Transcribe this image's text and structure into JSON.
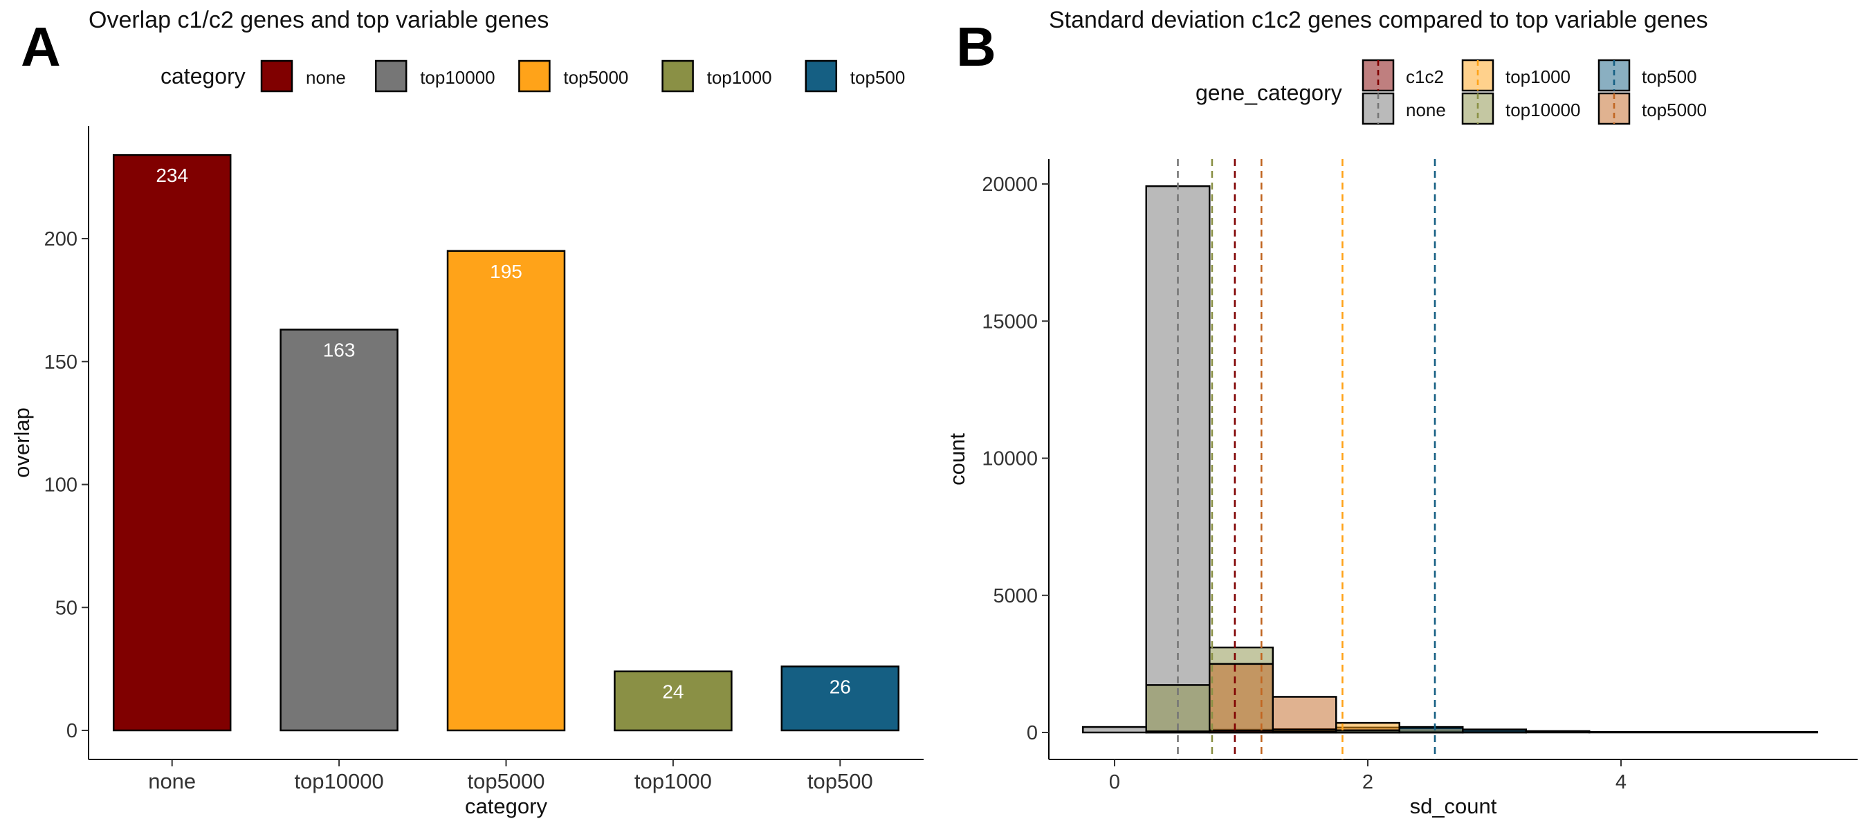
{
  "panels": {
    "a_letter": "A",
    "b_letter": "B"
  },
  "chart_data": [
    {
      "type": "bar",
      "title": "Overlap c1/c2 genes and top variable genes",
      "xlabel": "category",
      "ylabel": "overlap",
      "categories": [
        "none",
        "top10000",
        "top5000",
        "top1000",
        "top500"
      ],
      "values": [
        234,
        163,
        195,
        24,
        26
      ],
      "data_labels": [
        "234",
        "163",
        "195",
        "24",
        "26"
      ],
      "colors": [
        "#800000",
        "#767676",
        "#FFA319",
        "#8A9045",
        "#155F83"
      ],
      "ylim": [
        0,
        240
      ],
      "yticks": [
        0,
        50,
        100,
        150,
        200
      ],
      "legend": {
        "title": "category",
        "position": "top",
        "entries": [
          "none",
          "top10000",
          "top5000",
          "top1000",
          "top500"
        ]
      },
      "grid": false
    },
    {
      "type": "histogram",
      "title": "Standard deviation c1c2 genes compared to top variable genes",
      "xlabel": "sd_count",
      "ylabel": "count",
      "xlim": [
        -0.25,
        5.55
      ],
      "ylim": [
        0,
        20800
      ],
      "xticks": [
        0,
        2,
        4
      ],
      "yticks": [
        0,
        5000,
        10000,
        15000,
        20000
      ],
      "legend": {
        "title": "gene_category",
        "position": "top",
        "entries": [
          {
            "name": "c1c2",
            "color": "#800000"
          },
          {
            "name": "top1000",
            "color": "#FFA319"
          },
          {
            "name": "top500",
            "color": "#155F83"
          },
          {
            "name": "none",
            "color": "#767676"
          },
          {
            "name": "top10000",
            "color": "#8A9045"
          },
          {
            "name": "top5000",
            "color": "#C16622"
          }
        ]
      },
      "series": [
        {
          "name": "none",
          "color": "#767676",
          "bins": [
            [
              -0.25,
              0.25,
              200
            ],
            [
              0.25,
              0.75,
              19920
            ],
            [
              0.75,
              1.25,
              100
            ],
            [
              1.25,
              1.75,
              20
            ]
          ]
        },
        {
          "name": "top10000",
          "color": "#8A9045",
          "bins": [
            [
              0.25,
              0.75,
              1730
            ],
            [
              0.75,
              1.25,
              3100
            ],
            [
              1.25,
              1.75,
              120
            ],
            [
              1.75,
              2.25,
              30
            ]
          ]
        },
        {
          "name": "top5000",
          "color": "#C16622",
          "bins": [
            [
              0.75,
              1.25,
              2500
            ],
            [
              1.25,
              1.75,
              1300
            ],
            [
              1.75,
              2.25,
              180
            ],
            [
              2.25,
              2.75,
              40
            ]
          ]
        },
        {
          "name": "top1000",
          "color": "#FFA319",
          "bins": [
            [
              1.25,
              1.75,
              100
            ],
            [
              1.75,
              2.25,
              350
            ],
            [
              2.25,
              2.75,
              150
            ],
            [
              2.75,
              3.25,
              50
            ]
          ]
        },
        {
          "name": "top500",
          "color": "#155F83",
          "bins": [
            [
              1.75,
              2.25,
              80
            ],
            [
              2.25,
              2.75,
              200
            ],
            [
              2.75,
              3.25,
              110
            ],
            [
              3.25,
              3.75,
              50
            ],
            [
              3.75,
              5.55,
              20
            ]
          ]
        },
        {
          "name": "c1c2",
          "color": "#800000",
          "bins": [
            [
              0.25,
              0.75,
              40
            ],
            [
              0.75,
              1.25,
              70
            ],
            [
              1.25,
              1.75,
              30
            ]
          ]
        }
      ],
      "vlines": [
        {
          "name": "none",
          "x": 0.5,
          "color": "#767676"
        },
        {
          "name": "top10000",
          "x": 0.77,
          "color": "#8A9045"
        },
        {
          "name": "c1c2",
          "x": 0.95,
          "color": "#800000"
        },
        {
          "name": "top5000",
          "x": 1.16,
          "color": "#C16622"
        },
        {
          "name": "top1000",
          "x": 1.8,
          "color": "#FFA319"
        },
        {
          "name": "top500",
          "x": 2.53,
          "color": "#155F83"
        }
      ],
      "grid": false
    }
  ]
}
